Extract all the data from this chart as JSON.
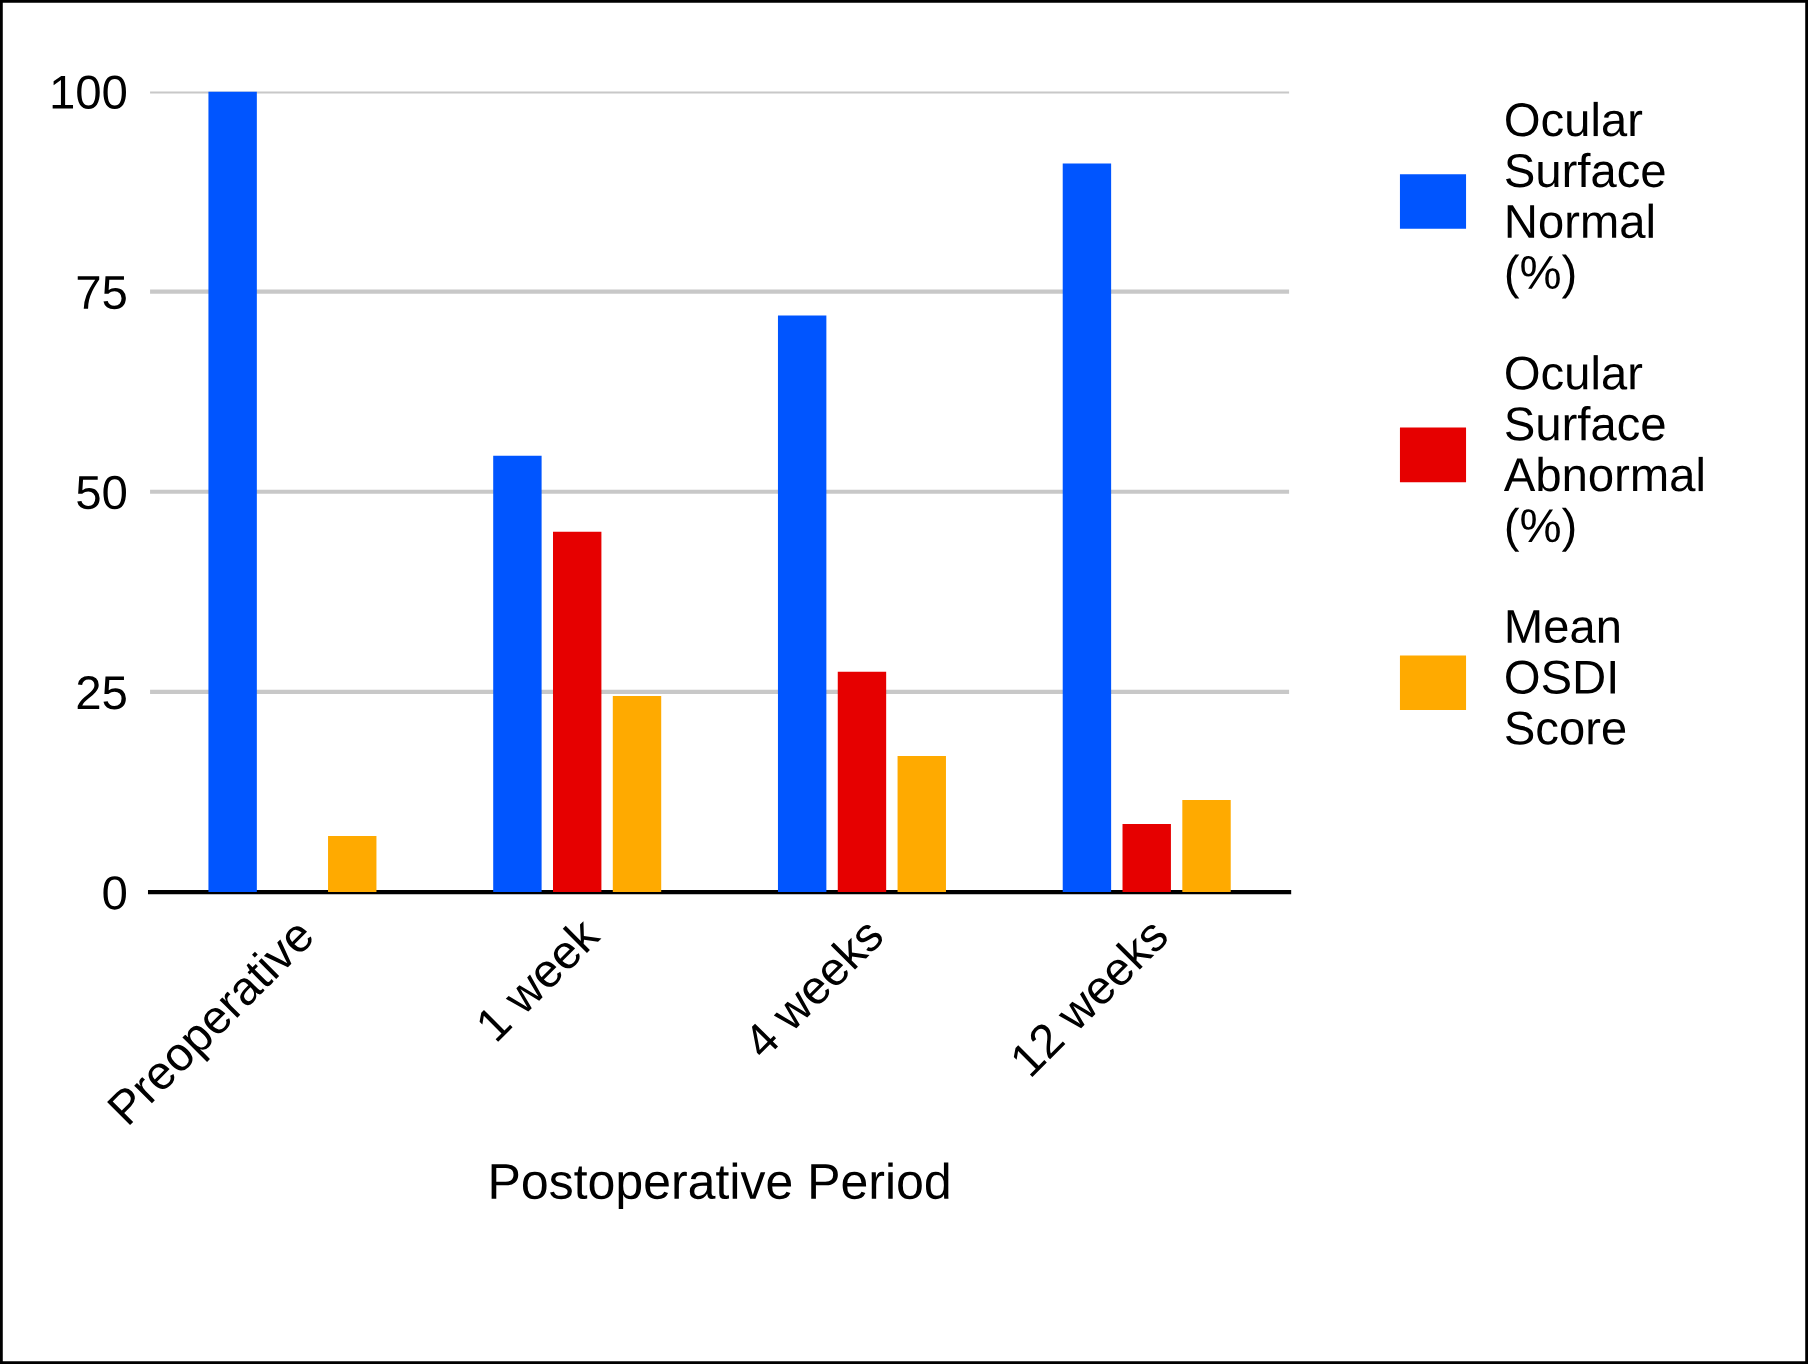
{
  "chart_data": {
    "type": "bar",
    "xlabel": "Postoperative Period",
    "categories": [
      "Preoperative",
      "1 week",
      "4 weeks",
      "12 weeks"
    ],
    "series": [
      {
        "name": "Ocular Surface Normal (%)",
        "color": "#0055ff",
        "values": [
          100,
          54.5,
          72,
          91
        ]
      },
      {
        "name": "Ocular Surface Abnormal (%)",
        "color": "#e60000",
        "values": [
          null,
          45,
          27.5,
          8.5
        ]
      },
      {
        "name": "Mean OSDI Score",
        "color": "#ffaa00",
        "values": [
          7,
          24.5,
          17,
          11.5
        ]
      }
    ],
    "ylim": [
      0,
      100
    ],
    "yticks": [
      0,
      25,
      50,
      75,
      100
    ],
    "grid": "y",
    "legend": "right"
  }
}
